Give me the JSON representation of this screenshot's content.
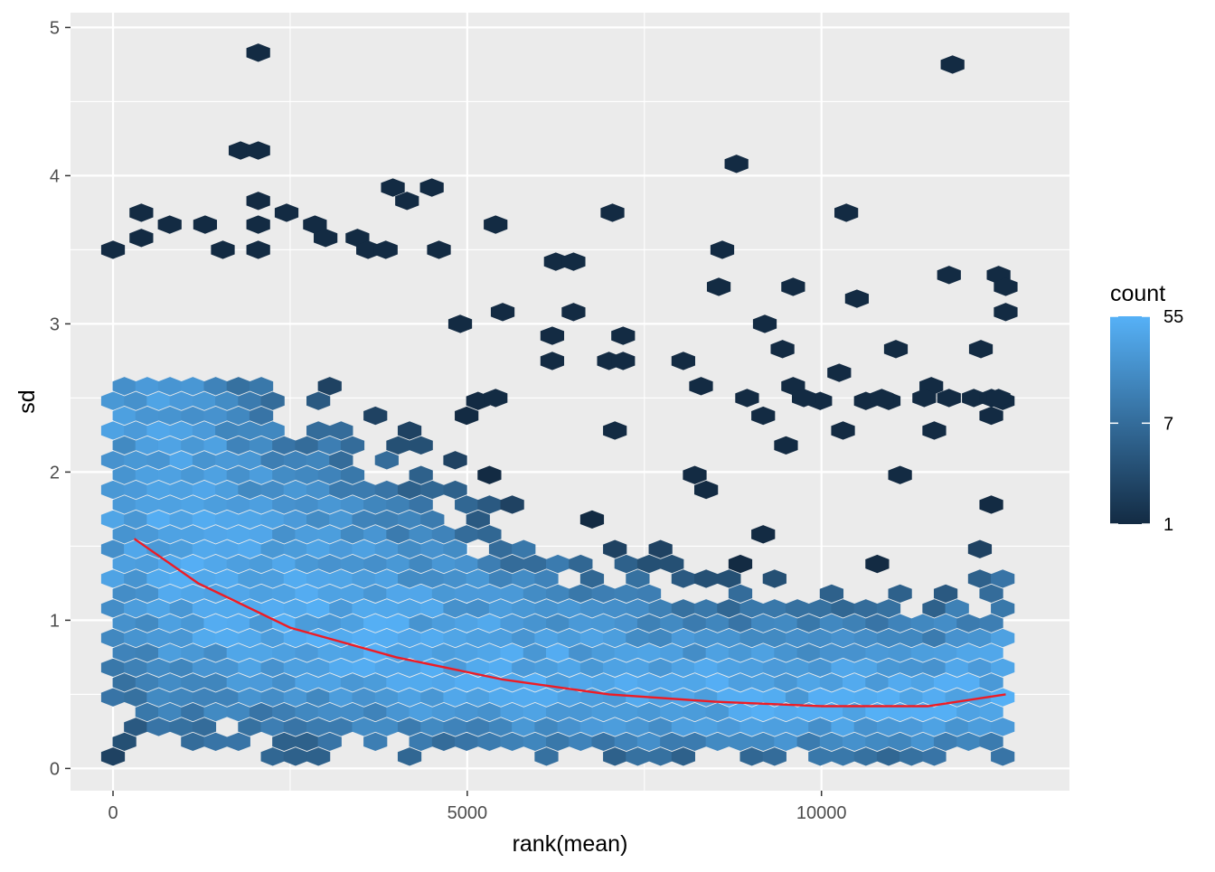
{
  "chart_data": {
    "type": "hexbin",
    "xlabel": "rank(mean)",
    "ylabel": "sd",
    "xlim": [
      -600,
      13500
    ],
    "ylim": [
      -0.15,
      5.1
    ],
    "x_ticks": [
      0,
      5000,
      10000
    ],
    "x_tick_labels": [
      "0",
      "5000",
      "10000"
    ],
    "y_ticks": [
      0,
      1,
      2,
      3,
      4,
      5
    ],
    "y_tick_labels": [
      "0",
      "1",
      "2",
      "3",
      "4",
      "5"
    ],
    "grid": true,
    "background_color": "#ebebeb",
    "grid_color": "#ffffff",
    "legend": {
      "title": "count",
      "position": "right",
      "scale": "log",
      "breaks": [
        55,
        7,
        1
      ],
      "break_labels": [
        "55",
        "7",
        "1"
      ],
      "low_color": "#132b43",
      "high_color": "#56b1f7"
    },
    "density_ridge": [
      {
        "x": 300,
        "y": 1.55
      },
      {
        "x": 1200,
        "y": 1.25
      },
      {
        "x": 2500,
        "y": 0.95
      },
      {
        "x": 4000,
        "y": 0.75
      },
      {
        "x": 5500,
        "y": 0.6
      },
      {
        "x": 7000,
        "y": 0.5
      },
      {
        "x": 8500,
        "y": 0.45
      },
      {
        "x": 10000,
        "y": 0.42
      },
      {
        "x": 11500,
        "y": 0.42
      },
      {
        "x": 12600,
        "y": 0.5
      }
    ],
    "outliers": [
      {
        "x": 2050,
        "y": 4.83
      },
      {
        "x": 11850,
        "y": 4.75
      },
      {
        "x": 1800,
        "y": 4.17
      },
      {
        "x": 2050,
        "y": 4.17
      },
      {
        "x": 8800,
        "y": 4.08
      },
      {
        "x": 3950,
        "y": 3.92
      },
      {
        "x": 4150,
        "y": 3.83
      },
      {
        "x": 4500,
        "y": 3.92
      },
      {
        "x": 2050,
        "y": 3.83
      },
      {
        "x": 400,
        "y": 3.75
      },
      {
        "x": 2450,
        "y": 3.75
      },
      {
        "x": 7050,
        "y": 3.75
      },
      {
        "x": 10350,
        "y": 3.75
      },
      {
        "x": 800,
        "y": 3.67
      },
      {
        "x": 1300,
        "y": 3.67
      },
      {
        "x": 2050,
        "y": 3.67
      },
      {
        "x": 2850,
        "y": 3.67
      },
      {
        "x": 5400,
        "y": 3.67
      },
      {
        "x": 400,
        "y": 3.58
      },
      {
        "x": 3000,
        "y": 3.58
      },
      {
        "x": 3450,
        "y": 3.58
      },
      {
        "x": 0,
        "y": 3.5
      },
      {
        "x": 1550,
        "y": 3.5
      },
      {
        "x": 2050,
        "y": 3.5
      },
      {
        "x": 3600,
        "y": 3.5
      },
      {
        "x": 3850,
        "y": 3.5
      },
      {
        "x": 4600,
        "y": 3.5
      },
      {
        "x": 8600,
        "y": 3.5
      },
      {
        "x": 6250,
        "y": 3.42
      },
      {
        "x": 6500,
        "y": 3.42
      },
      {
        "x": 11800,
        "y": 3.33
      },
      {
        "x": 12500,
        "y": 3.33
      },
      {
        "x": 8550,
        "y": 3.25
      },
      {
        "x": 9600,
        "y": 3.25
      },
      {
        "x": 12600,
        "y": 3.25
      },
      {
        "x": 10500,
        "y": 3.17
      },
      {
        "x": 5500,
        "y": 3.08
      },
      {
        "x": 6500,
        "y": 3.08
      },
      {
        "x": 12600,
        "y": 3.08
      },
      {
        "x": 9200,
        "y": 3.0
      },
      {
        "x": 4900,
        "y": 3.0
      },
      {
        "x": 6200,
        "y": 2.92
      },
      {
        "x": 7200,
        "y": 2.92
      },
      {
        "x": 9450,
        "y": 2.83
      },
      {
        "x": 11050,
        "y": 2.83
      },
      {
        "x": 12250,
        "y": 2.83
      },
      {
        "x": 6200,
        "y": 2.75
      },
      {
        "x": 7000,
        "y": 2.75
      },
      {
        "x": 7200,
        "y": 2.75
      },
      {
        "x": 8050,
        "y": 2.75
      },
      {
        "x": 10250,
        "y": 2.67
      },
      {
        "x": 8300,
        "y": 2.58
      },
      {
        "x": 9600,
        "y": 2.58
      },
      {
        "x": 11550,
        "y": 2.58
      },
      {
        "x": 5400,
        "y": 2.5
      },
      {
        "x": 8950,
        "y": 2.5
      },
      {
        "x": 9750,
        "y": 2.5
      },
      {
        "x": 10850,
        "y": 2.5
      },
      {
        "x": 11450,
        "y": 2.5
      },
      {
        "x": 11800,
        "y": 2.5
      },
      {
        "x": 12150,
        "y": 2.5
      },
      {
        "x": 12400,
        "y": 2.5
      },
      {
        "x": 12500,
        "y": 2.5
      }
    ]
  }
}
